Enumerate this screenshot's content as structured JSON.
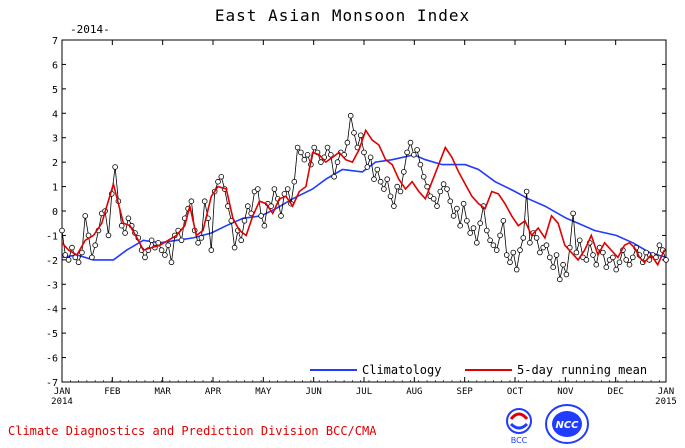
{
  "title": "East Asian Monsoon Index",
  "year_tag": "-2014-",
  "footer": "Climate Diagnostics and Prediction Division  BCC/CMA",
  "logos": {
    "bcc": "BCC",
    "ncc": "NCC"
  },
  "legend": {
    "climatology": "Climatology",
    "running_mean": "5-day running mean"
  },
  "colors": {
    "climatology": "#1f3cff",
    "running_mean": "#e00000",
    "footer": "#e00000"
  },
  "chart_data": {
    "type": "line",
    "ylim": [
      -7,
      7
    ],
    "yticks": [
      "7",
      "6",
      "5",
      "4",
      "3",
      "2",
      "1",
      "0",
      "-1",
      "-2",
      "-3",
      "-4",
      "-5",
      "-6",
      "-7"
    ],
    "xticks": [
      {
        "label": "JAN",
        "sub": "2014"
      },
      {
        "label": "FEB",
        "sub": ""
      },
      {
        "label": "MAR",
        "sub": ""
      },
      {
        "label": "APR",
        "sub": ""
      },
      {
        "label": "MAY",
        "sub": ""
      },
      {
        "label": "JUN",
        "sub": ""
      },
      {
        "label": "JUL",
        "sub": ""
      },
      {
        "label": "AUG",
        "sub": ""
      },
      {
        "label": "SEP",
        "sub": ""
      },
      {
        "label": "OCT",
        "sub": ""
      },
      {
        "label": "NOV",
        "sub": ""
      },
      {
        "label": "DEC",
        "sub": ""
      },
      {
        "label": "JAN",
        "sub": "2015"
      }
    ],
    "series": [
      {
        "name": "Climatology",
        "x": [
          1,
          10,
          20,
          32,
          40,
          50,
          60,
          70,
          80,
          91,
          100,
          110,
          121,
          130,
          140,
          152,
          160,
          170,
          182,
          190,
          200,
          213,
          220,
          230,
          244,
          252,
          262,
          274,
          282,
          292,
          305,
          312,
          322,
          335,
          345,
          355,
          365
        ],
        "values": [
          -1.9,
          -1.8,
          -2.0,
          -2.0,
          -1.6,
          -1.2,
          -1.3,
          -1.2,
          -1.1,
          -0.9,
          -0.6,
          -0.3,
          -0.2,
          0.1,
          0.5,
          0.9,
          1.3,
          1.7,
          1.6,
          2.0,
          2.1,
          2.3,
          2.1,
          1.9,
          1.9,
          1.7,
          1.2,
          0.8,
          0.5,
          0.2,
          -0.3,
          -0.5,
          -0.8,
          -1.0,
          -1.3,
          -1.7,
          -1.9
        ]
      },
      {
        "name": "5-day running mean",
        "x": [
          1,
          5,
          10,
          15,
          20,
          25,
          28,
          32,
          35,
          38,
          42,
          47,
          50,
          55,
          60,
          65,
          70,
          75,
          78,
          82,
          86,
          91,
          95,
          100,
          104,
          108,
          112,
          116,
          120,
          124,
          128,
          132,
          136,
          140,
          144,
          148,
          152,
          156,
          160,
          164,
          168,
          172,
          176,
          180,
          184,
          188,
          192,
          196,
          200,
          204,
          208,
          212,
          216,
          220,
          224,
          228,
          232,
          236,
          240,
          244,
          248,
          252,
          256,
          260,
          264,
          268,
          272,
          276,
          280,
          284,
          288,
          292,
          296,
          300,
          304,
          308,
          312,
          316,
          320,
          324,
          328,
          332,
          336,
          340,
          343,
          346,
          349,
          352,
          356,
          360,
          364
        ],
        "values": [
          -1.3,
          -1.6,
          -1.8,
          -1.2,
          -1.0,
          -0.5,
          0.2,
          1.1,
          0.3,
          -0.5,
          -0.6,
          -1.2,
          -1.6,
          -1.5,
          -1.4,
          -1.2,
          -1.0,
          -0.6,
          0.2,
          -1.0,
          -0.8,
          0.6,
          1.0,
          0.9,
          -0.3,
          -0.8,
          -1.0,
          -0.2,
          0.4,
          0.3,
          -0.1,
          0.5,
          0.6,
          0.2,
          0.8,
          1.0,
          2.4,
          2.3,
          2.0,
          2.2,
          2.4,
          2.1,
          2.0,
          2.5,
          3.3,
          2.9,
          2.7,
          2.1,
          1.9,
          1.3,
          0.9,
          1.2,
          0.8,
          0.5,
          1.2,
          1.9,
          2.6,
          2.2,
          1.6,
          1.1,
          0.6,
          0.3,
          0.1,
          0.8,
          0.7,
          0.3,
          -0.2,
          -0.6,
          -0.4,
          -1.0,
          -0.7,
          -1.1,
          -0.2,
          -0.5,
          -1.4,
          -1.7,
          -2.0,
          -1.6,
          -1.0,
          -1.8,
          -1.3,
          -1.6,
          -1.9,
          -1.4,
          -1.3,
          -1.5,
          -1.9,
          -2.1,
          -1.8,
          -2.2,
          -1.6
        ]
      },
      {
        "name": "daily",
        "x": [
          1,
          3,
          5,
          7,
          9,
          11,
          13,
          15,
          17,
          19,
          21,
          23,
          25,
          27,
          29,
          31,
          33,
          35,
          37,
          39,
          41,
          43,
          45,
          47,
          49,
          51,
          53,
          55,
          57,
          59,
          61,
          63,
          65,
          67,
          69,
          71,
          73,
          75,
          77,
          79,
          81,
          83,
          85,
          87,
          89,
          91,
          93,
          95,
          97,
          99,
          101,
          103,
          105,
          107,
          109,
          111,
          113,
          115,
          117,
          119,
          121,
          123,
          125,
          127,
          129,
          131,
          133,
          135,
          137,
          139,
          141,
          143,
          145,
          147,
          149,
          151,
          153,
          155,
          157,
          159,
          161,
          163,
          165,
          167,
          169,
          171,
          173,
          175,
          177,
          179,
          181,
          183,
          185,
          187,
          189,
          191,
          193,
          195,
          197,
          199,
          201,
          203,
          205,
          207,
          209,
          211,
          213,
          215,
          217,
          219,
          221,
          223,
          225,
          227,
          229,
          231,
          233,
          235,
          237,
          239,
          241,
          243,
          245,
          247,
          249,
          251,
          253,
          255,
          257,
          259,
          261,
          263,
          265,
          267,
          269,
          271,
          273,
          275,
          277,
          279,
          281,
          283,
          285,
          287,
          289,
          291,
          293,
          295,
          297,
          299,
          301,
          303,
          305,
          307,
          309,
          311,
          313,
          315,
          317,
          319,
          321,
          323,
          325,
          327,
          329,
          331,
          333,
          335,
          337,
          339,
          341,
          343,
          345,
          347,
          349,
          351,
          353,
          355,
          357,
          359,
          361,
          363,
          365
        ],
        "values": [
          -0.8,
          -1.8,
          -2.0,
          -1.5,
          -1.9,
          -2.1,
          -1.7,
          -0.2,
          -1.0,
          -1.9,
          -1.4,
          -0.8,
          -0.1,
          0.0,
          -1.0,
          0.7,
          1.8,
          0.4,
          -0.6,
          -0.9,
          -0.3,
          -0.6,
          -0.9,
          -1.1,
          -1.6,
          -1.9,
          -1.6,
          -1.2,
          -1.5,
          -1.3,
          -1.6,
          -1.8,
          -1.4,
          -2.1,
          -1.0,
          -0.8,
          -1.2,
          -0.3,
          0.1,
          0.4,
          -0.8,
          -1.3,
          -1.1,
          0.4,
          -0.3,
          -1.6,
          0.8,
          1.2,
          1.4,
          0.9,
          0.2,
          -0.4,
          -1.5,
          -0.8,
          -1.2,
          -0.4,
          0.2,
          -0.1,
          0.8,
          0.9,
          -0.2,
          -0.6,
          0.3,
          0.2,
          0.9,
          0.5,
          -0.2,
          0.7,
          0.9,
          0.3,
          1.2,
          2.6,
          2.4,
          2.1,
          2.3,
          1.9,
          2.6,
          2.4,
          2.0,
          2.2,
          2.6,
          2.3,
          1.4,
          2.0,
          2.4,
          2.3,
          2.8,
          3.9,
          3.2,
          2.6,
          3.1,
          2.4,
          1.8,
          2.2,
          1.3,
          1.7,
          1.2,
          0.9,
          1.3,
          0.6,
          0.2,
          1.0,
          0.8,
          1.6,
          2.4,
          2.8,
          2.3,
          2.5,
          1.9,
          1.4,
          1.0,
          0.6,
          0.5,
          0.2,
          0.8,
          1.1,
          0.9,
          0.4,
          -0.2,
          0.1,
          -0.6,
          0.3,
          -0.4,
          -0.9,
          -0.7,
          -1.3,
          -0.5,
          0.2,
          -0.8,
          -1.2,
          -1.4,
          -1.6,
          -1.0,
          -0.4,
          -1.8,
          -2.1,
          -1.7,
          -2.4,
          -1.6,
          -1.1,
          0.8,
          -1.3,
          -0.9,
          -1.1,
          -1.7,
          -1.5,
          -1.4,
          -1.9,
          -2.3,
          -1.8,
          -2.8,
          -2.2,
          -2.6,
          -1.5,
          -0.1,
          -1.7,
          -1.2,
          -1.9,
          -2.0,
          -1.3,
          -1.8,
          -2.2,
          -1.5,
          -1.7,
          -2.3,
          -2.0,
          -1.9,
          -2.4,
          -2.1,
          -1.6,
          -2.0,
          -2.2,
          -1.9,
          -1.5,
          -1.8,
          -2.1,
          -1.7,
          -2.0,
          -1.8,
          -1.9,
          -1.4,
          -1.6,
          -2.0
        ]
      }
    ]
  }
}
